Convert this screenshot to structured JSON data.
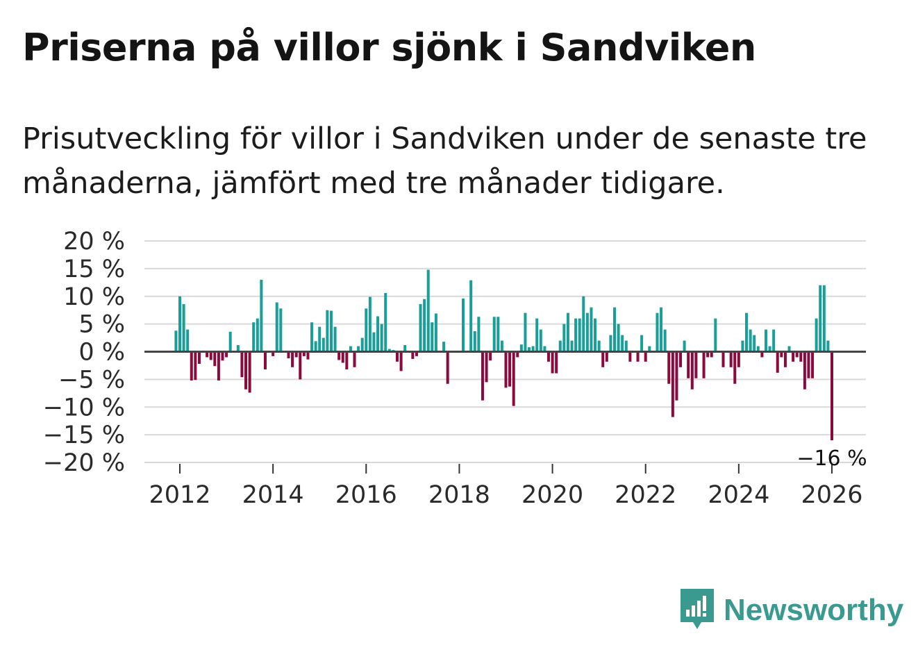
{
  "header": {
    "title": "Priserna på villor sjönk i Sandviken",
    "subtitle": "Prisutveckling för villor i Sandviken under de senaste tre månaderna, jämfört med tre månader tidigare."
  },
  "brand": {
    "name": "Newsworthy",
    "icon": "bar-chart-speech-bubble-icon",
    "color": "#3a9a90"
  },
  "colors": {
    "positive": "#1a9e99",
    "negative": "#8a0a3e",
    "grid": "#d9d9d9",
    "zero_line": "#444444"
  },
  "chart_data": {
    "type": "bar",
    "title": "Priserna på villor sjönk i Sandviken",
    "xlabel": "",
    "ylabel": "",
    "ylim": [
      -20,
      20
    ],
    "yticks": [
      20,
      15,
      10,
      5,
      0,
      -5,
      -10,
      -15,
      -20
    ],
    "ytick_labels": [
      "20 %",
      "15 %",
      "10 %",
      "5 %",
      "0 %",
      "−5 %",
      "−10 %",
      "−15 %",
      "−20 %"
    ],
    "xticks": [
      2012,
      2014,
      2016,
      2018,
      2020,
      2022,
      2024,
      2026
    ],
    "xtick_labels": [
      "2012",
      "2014",
      "2016",
      "2018",
      "2020",
      "2022",
      "2024",
      "2026"
    ],
    "start": "2011-12",
    "frequency": "monthly",
    "unit": "%",
    "grid": true,
    "annotation": {
      "label": "−16 %",
      "value": -16,
      "position": "last bar"
    },
    "values": [
      3.8,
      10.0,
      8.6,
      4.0,
      -5.2,
      -5.1,
      -2.2,
      0,
      -1.0,
      -1.5,
      -2.6,
      -5.2,
      -1.6,
      -1.0,
      3.6,
      0,
      1.2,
      -4.6,
      -6.8,
      -7.4,
      5.3,
      6.0,
      13.0,
      -3.2,
      0,
      -0.8,
      8.9,
      7.8,
      0,
      -1.2,
      -2.8,
      -1.0,
      -5.0,
      -0.8,
      -1.4,
      5.3,
      1.9,
      4.5,
      2.5,
      7.5,
      7.4,
      4.5,
      -1.5,
      -2.0,
      -3.2,
      1.0,
      -2.8,
      1.0,
      2.5,
      7.8,
      9.9,
      3.5,
      6.4,
      5.0,
      10.6,
      0.5,
      0.3,
      -1.8,
      -3.5,
      1.2,
      0,
      -1.3,
      -0.8,
      8.6,
      9.5,
      14.8,
      5.3,
      6.9,
      0,
      1.8,
      -5.8,
      0,
      0,
      0,
      9.6,
      0,
      12.9,
      3.7,
      6.3,
      -8.8,
      -5.5,
      -1.6,
      6.3,
      6.3,
      2.0,
      -6.5,
      -6.3,
      -9.8,
      -1.0,
      1.3,
      7.0,
      0.8,
      1.0,
      6.0,
      4.0,
      1.0,
      -1.8,
      -3.9,
      -3.9,
      2.0,
      5.0,
      7.0,
      2.0,
      6.0,
      6.0,
      10.0,
      7.0,
      8.0,
      6.0,
      2.0,
      -2.8,
      -1.8,
      3.0,
      8.0,
      5.0,
      3.0,
      2.0,
      -1.8,
      0,
      -1.8,
      3.0,
      -1.8,
      1.0,
      0,
      7.0,
      8.0,
      4.0,
      -5.8,
      -11.8,
      -8.8,
      -2.8,
      2.0,
      -4.8,
      -6.8,
      -4.8,
      0,
      -4.8,
      -1.0,
      -1.0,
      6.0,
      0,
      -2.8,
      0,
      -2.8,
      -5.8,
      -2.8,
      2.0,
      7.0,
      4.0,
      3.0,
      1.0,
      -1.0,
      4.0,
      1.0,
      4.0,
      -3.8,
      -1.0,
      -2.8,
      1.0,
      -1.8,
      -1.0,
      -1.8,
      -6.8,
      -4.8,
      -4.8,
      6.0,
      12.0,
      12.0,
      2.0,
      -16.0
    ]
  }
}
